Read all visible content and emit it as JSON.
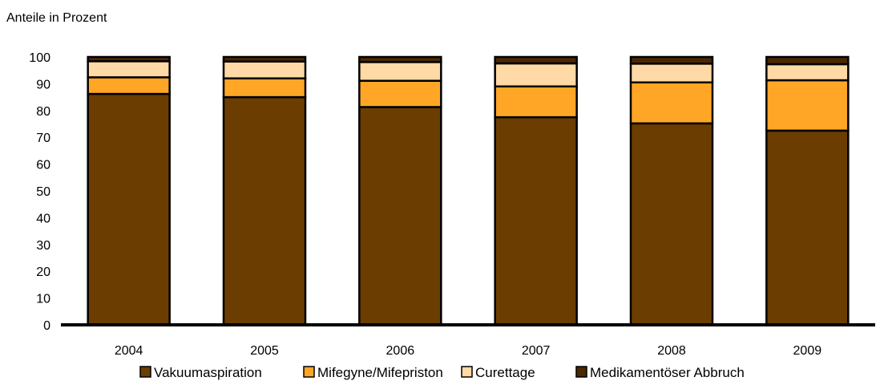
{
  "chart_data": {
    "type": "bar",
    "stacked": true,
    "title": "",
    "xlabel": "",
    "ylabel": "Anteile in Prozent",
    "ylim": [
      0,
      100
    ],
    "yticks": [
      "0",
      "10",
      "20",
      "30",
      "40",
      "50",
      "60",
      "70",
      "80",
      "90",
      "100"
    ],
    "categories": [
      "2004",
      "2005",
      "2006",
      "2007",
      "2008",
      "2009"
    ],
    "series": [
      {
        "name": "Vakuumaspiration",
        "color": "#6B3D00",
        "values": [
          86.2,
          85.0,
          81.3,
          77.5,
          75.2,
          72.5
        ]
      },
      {
        "name": "Mifegyne/Mifepriston",
        "color": "#FFA626",
        "values": [
          6.2,
          7.0,
          9.8,
          11.5,
          15.3,
          18.8
        ]
      },
      {
        "name": "Curettage",
        "color": "#FFD9A6",
        "values": [
          6.0,
          6.3,
          7.0,
          8.6,
          7.0,
          6.0
        ]
      },
      {
        "name": "Medikamentöser Abbruch",
        "color": "#4A2800",
        "values": [
          1.6,
          1.7,
          1.9,
          2.4,
          2.5,
          2.7
        ]
      }
    ],
    "legend_position": "bottom",
    "grid": false
  }
}
